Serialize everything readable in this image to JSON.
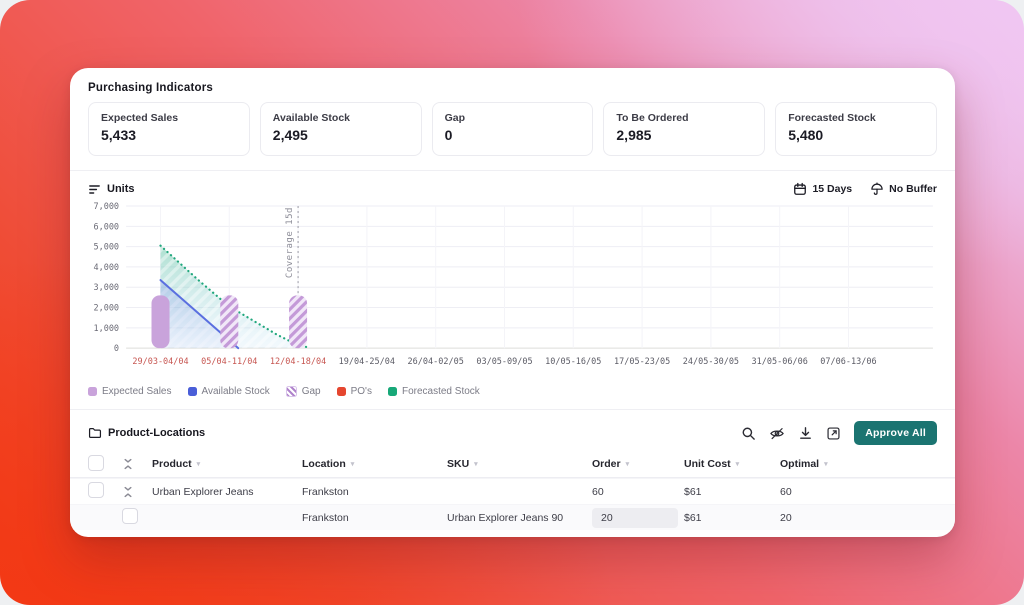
{
  "header": {
    "title": "Purchasing Indicators"
  },
  "stats": [
    {
      "label": "Expected Sales",
      "value": "5,433"
    },
    {
      "label": "Available Stock",
      "value": "2,495"
    },
    {
      "label": "Gap",
      "value": "0"
    },
    {
      "label": "To Be Ordered",
      "value": "2,985"
    },
    {
      "label": "Forecasted Stock",
      "value": "5,480"
    }
  ],
  "chart_section": {
    "units_label": "Units",
    "days_button": "15 Days",
    "buffer_button": "No Buffer"
  },
  "chart_data": {
    "type": "mixed",
    "title": "Units",
    "categories": [
      "29/03-04/04",
      "05/04-11/04",
      "12/04-18/04",
      "19/04-25/04",
      "26/04-02/05",
      "03/05-09/05",
      "10/05-16/05",
      "17/05-23/05",
      "24/05-30/05",
      "31/05-06/06",
      "07/06-13/06"
    ],
    "highlighted_tick_count": 3,
    "highlight_color": "#c75752",
    "ylim": [
      0,
      7000
    ],
    "y_tick_step": 1000,
    "grid": true,
    "annotation": {
      "x": 2,
      "label": "Coverage 15d"
    },
    "series": [
      {
        "name": "Expected Sales",
        "type": "bar",
        "color": "#c9a3db",
        "pattern": "solid",
        "bars": [
          {
            "x": 0,
            "value": 2600
          }
        ]
      },
      {
        "name": "Gap",
        "type": "bar",
        "color": "#c9a3db",
        "pattern": "hatched",
        "bars": [
          {
            "x": 1,
            "value": 2600
          },
          {
            "x": 2,
            "value": 2600
          }
        ]
      },
      {
        "name": "Available Stock",
        "type": "line",
        "color": "#5a6fe0",
        "points": [
          {
            "x": 0,
            "value": 3350
          },
          {
            "x": 1.13,
            "value": 0
          }
        ]
      },
      {
        "name": "Forecasted Stock",
        "type": "dotted_line_area",
        "color": "#21a77d",
        "points": [
          {
            "x": 0,
            "value": 5050
          },
          {
            "x": 0.55,
            "value": 3350
          },
          {
            "x": 1,
            "value": 2050
          },
          {
            "x": 1.4,
            "value": 1250
          },
          {
            "x": 1.7,
            "value": 650
          },
          {
            "x": 1.95,
            "value": 230
          },
          {
            "x": 2.12,
            "value": 60
          }
        ]
      }
    ],
    "legend": [
      {
        "label": "Expected Sales",
        "color": "#c9a3db",
        "pattern": "solid"
      },
      {
        "label": "Available Stock",
        "color": "#4a5ed8",
        "pattern": "solid"
      },
      {
        "label": "Gap",
        "color": "#b084cc",
        "pattern": "hatched"
      },
      {
        "label": "PO's",
        "color": "#e5462f",
        "pattern": "solid"
      },
      {
        "label": "Forecasted Stock",
        "color": "#17a878",
        "pattern": "solid"
      }
    ],
    "legend_position": "bottom-left"
  },
  "table_section": {
    "title": "Product-Locations",
    "approve_button": "Approve All",
    "toolbar_icons": [
      "search",
      "hide-columns",
      "download",
      "expand"
    ],
    "columns": [
      "Product",
      "Location",
      "SKU",
      "Order",
      "Unit Cost",
      "Optimal"
    ],
    "rows": [
      {
        "product": "Urban Explorer Jeans",
        "location": "Frankston",
        "sku": "",
        "order": "60",
        "unit_cost": "$61",
        "optimal": "60"
      },
      {
        "product": "",
        "location": "Frankston",
        "sku": "Urban Explorer Jeans 90",
        "order": "20",
        "unit_cost": "$61",
        "optimal": "20"
      }
    ]
  },
  "colors": {
    "accent_teal": "#1b7471",
    "bar_purple": "#c9a3db",
    "line_blue": "#5a6fe0",
    "line_green": "#21a77d"
  }
}
